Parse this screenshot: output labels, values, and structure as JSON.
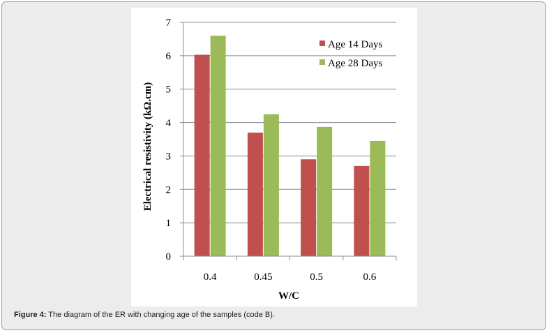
{
  "chart_data": {
    "type": "bar",
    "title": "",
    "xlabel": "W/C",
    "ylabel": "Electrical resistivity (kΩ.cm)",
    "categories": [
      "0.4",
      "0.45",
      "0.5",
      "0.6"
    ],
    "ylim": [
      0,
      7
    ],
    "yticks": [
      "0",
      "1",
      "2",
      "3",
      "4",
      "5",
      "6",
      "7"
    ],
    "grid": true,
    "legend_position": "top-right",
    "series": [
      {
        "name": "Age 14 Days",
        "color": "#c0504d",
        "values": [
          6.03,
          3.7,
          2.9,
          2.7
        ]
      },
      {
        "name": "Age 28 Days",
        "color": "#9bbb59",
        "values": [
          6.6,
          4.25,
          3.87,
          3.45
        ]
      }
    ]
  },
  "caption": {
    "label": "Figure 4:",
    "text": " The diagram of the ER with changing age of the samples (code B)."
  }
}
